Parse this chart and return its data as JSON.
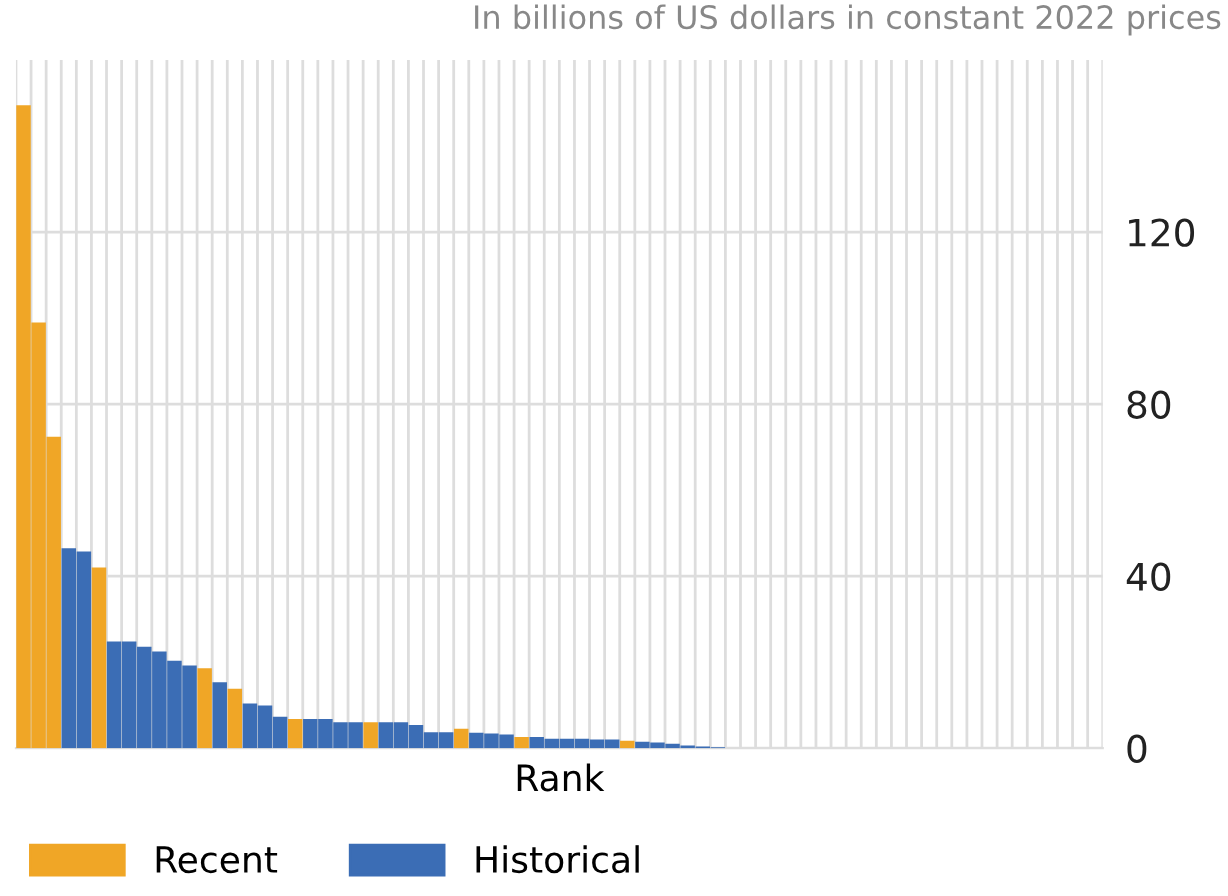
{
  "chart_data": {
    "type": "bar",
    "annotations": [
      "In billions of US dollars in constant 2022 prices"
    ],
    "xlabel": "Rank",
    "categories": [
      null,
      null,
      null,
      null,
      null,
      null,
      null,
      null,
      null,
      null,
      null,
      null,
      null,
      null,
      null,
      null,
      null,
      null,
      null,
      null,
      null,
      null,
      null,
      null,
      null,
      null,
      null,
      null,
      null,
      null,
      null,
      null,
      null,
      null,
      null,
      null,
      null,
      null,
      null,
      null,
      null,
      null,
      null,
      null,
      null,
      null,
      null,
      null,
      null,
      null,
      null,
      null,
      null,
      null,
      null,
      null,
      null,
      null,
      null,
      null,
      null,
      null,
      null,
      null,
      null,
      null,
      null,
      null,
      null,
      null,
      null,
      null
    ],
    "series": [
      {
        "name": "Recent",
        "color": "#f0a626",
        "values": [
          149.5,
          99,
          72.4,
          null,
          null,
          42,
          null,
          null,
          null,
          null,
          null,
          null,
          18.6,
          null,
          13.8,
          null,
          null,
          null,
          6.8,
          null,
          null,
          null,
          null,
          6.0,
          null,
          null,
          null,
          null,
          null,
          4.5,
          null,
          null,
          null,
          2.6,
          null,
          null,
          null,
          null,
          null,
          null,
          1.7,
          null,
          null,
          null,
          null,
          null,
          null,
          null,
          null,
          null,
          null,
          null,
          null,
          null,
          null,
          null,
          null,
          null,
          null,
          null,
          null,
          null,
          null,
          null,
          null,
          null,
          null,
          null,
          null,
          null,
          null,
          null
        ]
      },
      {
        "name": "Historical",
        "color": "#3b6db5",
        "values": [
          null,
          null,
          null,
          46.5,
          45.7,
          null,
          24.8,
          24.8,
          23.6,
          22.5,
          20.3,
          19.2,
          null,
          15.3,
          null,
          10.4,
          9.9,
          7.3,
          null,
          6.8,
          6.8,
          6.0,
          6.0,
          null,
          6.0,
          6.0,
          5.4,
          3.7,
          3.7,
          null,
          3.6,
          3.4,
          3.2,
          null,
          2.6,
          2.2,
          2.2,
          2.2,
          2.0,
          2.0,
          null,
          1.5,
          1.3,
          1.0,
          0.6,
          0.4,
          0.2,
          null,
          null,
          null,
          null,
          null,
          null,
          null,
          null,
          null,
          null,
          null,
          null,
          null,
          null,
          null,
          null,
          null,
          null,
          null,
          null,
          null,
          null,
          null,
          null,
          null
        ]
      }
    ],
    "ylim": [
      0,
      160
    ],
    "yticks": [
      0,
      40,
      80,
      120
    ],
    "grid": true,
    "legend": "bottom left"
  }
}
